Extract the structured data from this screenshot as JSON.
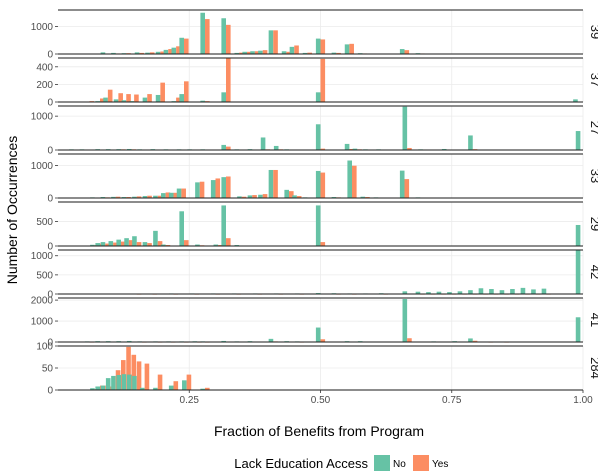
{
  "chart_data": {
    "type": "bar",
    "xlabel": "Fraction of Benefits from Program",
    "ylabel": "Number of Occurrences",
    "xlim": [
      0.0,
      1.0
    ],
    "x_ticks": [
      0.25,
      0.5,
      0.75,
      1.0
    ],
    "x_tick_labels": [
      "0.25",
      "0.50",
      "0.75",
      "1.00"
    ],
    "legend": {
      "title": "Lack Education Access",
      "position": "bottom",
      "items": [
        {
          "label": "No",
          "color": "#66c2a5"
        },
        {
          "label": "Yes",
          "color": "#fc8d62"
        }
      ]
    },
    "facets": [
      {
        "strip": "39",
        "ymax": 1600,
        "yticks": [
          0,
          1000
        ],
        "ytick_labels": [
          "0",
          "1000"
        ],
        "bars": [
          [
            0.09,
            60,
            0
          ],
          [
            0.11,
            40,
            20
          ],
          [
            0.13,
            30,
            30
          ],
          [
            0.155,
            60,
            40
          ],
          [
            0.175,
            50,
            60
          ],
          [
            0.195,
            80,
            90
          ],
          [
            0.21,
            150,
            180
          ],
          [
            0.225,
            230,
            280
          ],
          [
            0.24,
            590,
            560
          ],
          [
            0.28,
            1500,
            1270
          ],
          [
            0.32,
            1300,
            1060
          ],
          [
            0.345,
            40,
            50
          ],
          [
            0.36,
            80,
            80
          ],
          [
            0.375,
            100,
            100
          ],
          [
            0.39,
            120,
            140
          ],
          [
            0.41,
            860,
            860
          ],
          [
            0.435,
            100,
            80
          ],
          [
            0.45,
            260,
            310
          ],
          [
            0.475,
            40,
            50
          ],
          [
            0.5,
            560,
            530
          ],
          [
            0.53,
            50,
            40
          ],
          [
            0.555,
            350,
            370
          ],
          [
            0.58,
            30,
            20
          ],
          [
            0.66,
            180,
            140
          ],
          [
            0.69,
            30,
            20
          ]
        ]
      },
      {
        "strip": "37",
        "ymax": 500,
        "yticks": [
          0,
          200,
          400
        ],
        "ytick_labels": [
          "0",
          "200",
          "400"
        ],
        "bars": [
          [
            0.06,
            5,
            10
          ],
          [
            0.08,
            10,
            40
          ],
          [
            0.095,
            50,
            140
          ],
          [
            0.115,
            30,
            100
          ],
          [
            0.13,
            20,
            90
          ],
          [
            0.145,
            10,
            85
          ],
          [
            0.17,
            50,
            90
          ],
          [
            0.195,
            80,
            220
          ],
          [
            0.225,
            10,
            50
          ],
          [
            0.24,
            90,
            235
          ],
          [
            0.28,
            15,
            10
          ],
          [
            0.32,
            110,
            520
          ],
          [
            0.5,
            110,
            490
          ],
          [
            0.99,
            30,
            0
          ]
        ]
      },
      {
        "strip": "27",
        "ymax": 1300,
        "yticks": [
          0,
          1000
        ],
        "ytick_labels": [
          "0",
          "1000"
        ],
        "bars": [
          [
            0.03,
            20,
            10
          ],
          [
            0.05,
            20,
            10
          ],
          [
            0.08,
            25,
            15
          ],
          [
            0.1,
            25,
            15
          ],
          [
            0.12,
            25,
            20
          ],
          [
            0.14,
            30,
            20
          ],
          [
            0.16,
            20,
            10
          ],
          [
            0.185,
            25,
            15
          ],
          [
            0.21,
            20,
            10
          ],
          [
            0.235,
            20,
            15
          ],
          [
            0.255,
            20,
            10
          ],
          [
            0.28,
            20,
            10
          ],
          [
            0.32,
            150,
            100
          ],
          [
            0.345,
            20,
            15
          ],
          [
            0.37,
            25,
            10
          ],
          [
            0.395,
            370,
            20
          ],
          [
            0.42,
            120,
            20
          ],
          [
            0.44,
            20,
            15
          ],
          [
            0.5,
            760,
            40
          ],
          [
            0.555,
            180,
            30
          ],
          [
            0.57,
            40,
            20
          ],
          [
            0.59,
            20,
            10
          ],
          [
            0.615,
            20,
            10
          ],
          [
            0.665,
            1280,
            60
          ],
          [
            0.695,
            20,
            15
          ],
          [
            0.74,
            30,
            15
          ],
          [
            0.79,
            430,
            25
          ],
          [
            0.82,
            15,
            10
          ],
          [
            0.85,
            15,
            10
          ],
          [
            0.995,
            560,
            0
          ]
        ]
      },
      {
        "strip": "33",
        "ymax": 1350,
        "yticks": [
          0,
          1000
        ],
        "ytick_labels": [
          "0",
          "1000"
        ],
        "bars": [
          [
            0.07,
            20,
            15
          ],
          [
            0.09,
            30,
            20
          ],
          [
            0.11,
            35,
            40
          ],
          [
            0.13,
            30,
            30
          ],
          [
            0.15,
            40,
            50
          ],
          [
            0.17,
            60,
            70
          ],
          [
            0.19,
            70,
            70
          ],
          [
            0.205,
            150,
            170
          ],
          [
            0.22,
            160,
            160
          ],
          [
            0.235,
            290,
            290
          ],
          [
            0.27,
            480,
            500
          ],
          [
            0.3,
            550,
            600
          ],
          [
            0.32,
            640,
            660
          ],
          [
            0.35,
            50,
            40
          ],
          [
            0.37,
            80,
            90
          ],
          [
            0.39,
            100,
            120
          ],
          [
            0.41,
            860,
            860
          ],
          [
            0.44,
            250,
            210
          ],
          [
            0.455,
            80,
            60
          ],
          [
            0.475,
            20,
            15
          ],
          [
            0.5,
            830,
            780
          ],
          [
            0.53,
            30,
            20
          ],
          [
            0.56,
            1150,
            990
          ],
          [
            0.585,
            40,
            30
          ],
          [
            0.61,
            20,
            15
          ],
          [
            0.66,
            840,
            580
          ],
          [
            0.69,
            20,
            10
          ]
        ]
      },
      {
        "strip": "29",
        "ymax": 900,
        "yticks": [
          0,
          500
        ],
        "ytick_labels": [
          "0",
          "500"
        ],
        "bars": [
          [
            0.07,
            25,
            20
          ],
          [
            0.08,
            60,
            50
          ],
          [
            0.09,
            80,
            50
          ],
          [
            0.105,
            100,
            70
          ],
          [
            0.12,
            130,
            90
          ],
          [
            0.135,
            160,
            120
          ],
          [
            0.15,
            200,
            80
          ],
          [
            0.17,
            80,
            60
          ],
          [
            0.19,
            310,
            100
          ],
          [
            0.205,
            30,
            20
          ],
          [
            0.24,
            710,
            120
          ],
          [
            0.27,
            30,
            15
          ],
          [
            0.305,
            30,
            20
          ],
          [
            0.32,
            830,
            160
          ],
          [
            0.345,
            20,
            10
          ],
          [
            0.5,
            830,
            80
          ],
          [
            0.995,
            430,
            0
          ]
        ]
      },
      {
        "strip": "42",
        "ymax": 1150,
        "yticks": [
          0,
          500,
          1000
        ],
        "ytick_labels": [
          "0",
          "500",
          "1000"
        ],
        "bars": [
          [
            0.15,
            10,
            5
          ],
          [
            0.18,
            10,
            5
          ],
          [
            0.22,
            15,
            5
          ],
          [
            0.26,
            15,
            5
          ],
          [
            0.3,
            15,
            5
          ],
          [
            0.34,
            15,
            5
          ],
          [
            0.38,
            15,
            5
          ],
          [
            0.42,
            15,
            5
          ],
          [
            0.46,
            15,
            5
          ],
          [
            0.5,
            25,
            10
          ],
          [
            0.53,
            20,
            5
          ],
          [
            0.56,
            15,
            5
          ],
          [
            0.59,
            15,
            10
          ],
          [
            0.62,
            20,
            5
          ],
          [
            0.665,
            70,
            10
          ],
          [
            0.69,
            60,
            5
          ],
          [
            0.71,
            50,
            5
          ],
          [
            0.73,
            60,
            5
          ],
          [
            0.75,
            50,
            5
          ],
          [
            0.77,
            70,
            5
          ],
          [
            0.79,
            100,
            5
          ],
          [
            0.81,
            150,
            5
          ],
          [
            0.83,
            130,
            5
          ],
          [
            0.85,
            100,
            5
          ],
          [
            0.87,
            130,
            5
          ],
          [
            0.89,
            160,
            5
          ],
          [
            0.91,
            120,
            5
          ],
          [
            0.93,
            140,
            5
          ],
          [
            0.995,
            1160,
            0
          ]
        ]
      },
      {
        "strip": "41",
        "ymax": 2100,
        "yticks": [
          0,
          1000,
          2000
        ],
        "ytick_labels": [
          "0",
          "1000",
          "2000"
        ],
        "bars": [
          [
            0.06,
            30,
            10
          ],
          [
            0.08,
            40,
            15
          ],
          [
            0.1,
            40,
            15
          ],
          [
            0.12,
            40,
            15
          ],
          [
            0.14,
            50,
            20
          ],
          [
            0.16,
            30,
            10
          ],
          [
            0.19,
            30,
            10
          ],
          [
            0.215,
            30,
            10
          ],
          [
            0.24,
            30,
            10
          ],
          [
            0.265,
            35,
            10
          ],
          [
            0.28,
            30,
            10
          ],
          [
            0.32,
            50,
            20
          ],
          [
            0.345,
            30,
            15
          ],
          [
            0.37,
            40,
            20
          ],
          [
            0.41,
            150,
            30
          ],
          [
            0.44,
            40,
            20
          ],
          [
            0.46,
            30,
            10
          ],
          [
            0.5,
            690,
            130
          ],
          [
            0.555,
            40,
            20
          ],
          [
            0.58,
            40,
            15
          ],
          [
            0.665,
            2050,
            180
          ],
          [
            0.72,
            30,
            15
          ],
          [
            0.76,
            40,
            15
          ],
          [
            0.79,
            170,
            60
          ],
          [
            0.82,
            20,
            10
          ],
          [
            0.85,
            20,
            10
          ],
          [
            0.995,
            1180,
            0
          ]
        ]
      },
      {
        "strip": "284",
        "ymax": 100,
        "yticks": [
          0,
          50,
          100
        ],
        "ytick_labels": [
          "0",
          "50",
          "100"
        ],
        "bars": [
          [
            0.07,
            4,
            2
          ],
          [
            0.08,
            8,
            10
          ],
          [
            0.09,
            10,
            10
          ],
          [
            0.1,
            27,
            8
          ],
          [
            0.11,
            32,
            45
          ],
          [
            0.12,
            34,
            68
          ],
          [
            0.13,
            36,
            98
          ],
          [
            0.14,
            35,
            80
          ],
          [
            0.15,
            32,
            65
          ],
          [
            0.165,
            5,
            60
          ],
          [
            0.19,
            5,
            35
          ],
          [
            0.22,
            10,
            20
          ],
          [
            0.245,
            22,
            35
          ],
          [
            0.28,
            3,
            5
          ]
        ]
      }
    ]
  }
}
